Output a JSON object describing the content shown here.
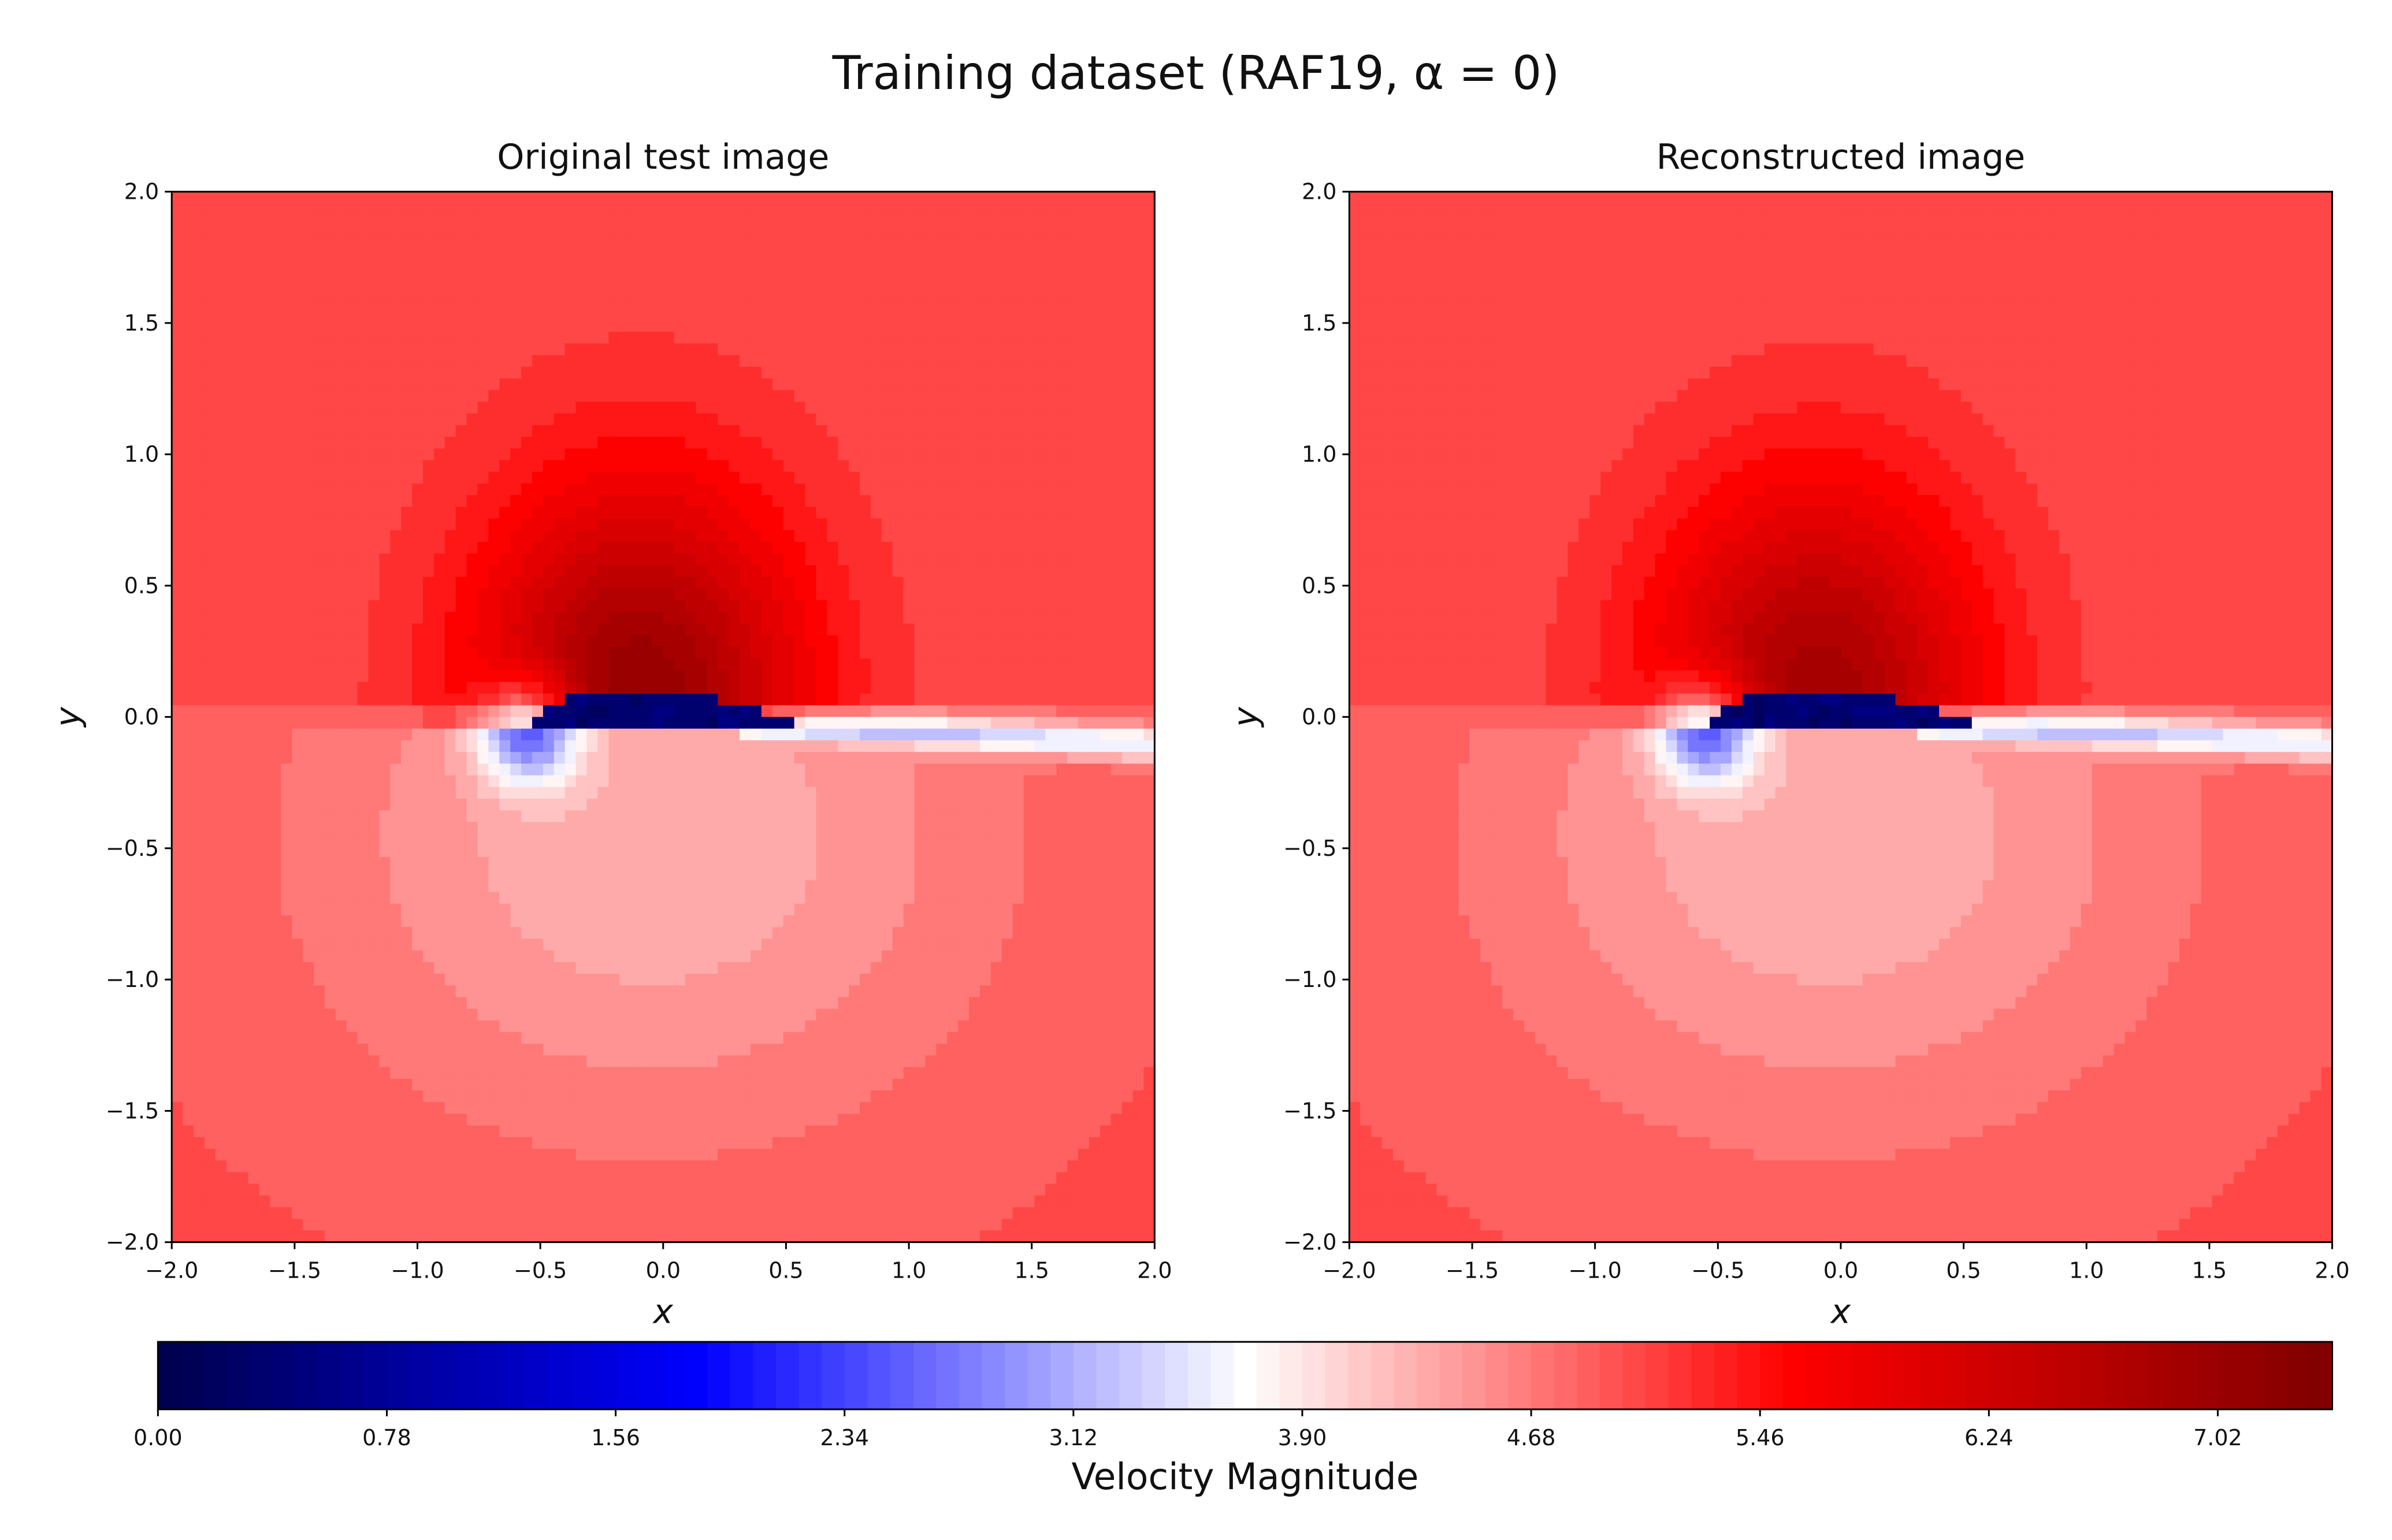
{
  "figure": {
    "title": "Training dataset (RAF19, α = 0)"
  },
  "colors": {
    "background": "#ffffff",
    "axis": "#000000",
    "colormap": [
      "#00004c",
      "#0000ff",
      "#ffffff",
      "#ff0000",
      "#7f0000"
    ]
  },
  "chart_data": [
    {
      "type": "heatmap",
      "title": "Original test image",
      "xlabel": "x",
      "ylabel": "y",
      "xlim": [
        -2.0,
        2.0
      ],
      "ylim": [
        -2.0,
        2.0
      ],
      "x_ticks": [
        "−2.0",
        "−1.5",
        "−1.0",
        "−0.5",
        "0.0",
        "0.5",
        "1.0",
        "1.5",
        "2.0"
      ],
      "y_ticks": [
        "2.0",
        "1.5",
        "1.0",
        "0.5",
        "0.0",
        "−0.5",
        "−1.0",
        "−1.5",
        "−2.0"
      ],
      "field": "velocity magnitude around an airfoil (leading edge ≈ x=-0.5, trailing edge ≈ x=0.5, wake toward x=2)",
      "freestream_value": 5.0,
      "max_value_above_airfoil": 7.0,
      "min_value_on_airfoil": 0.2
    },
    {
      "type": "heatmap",
      "title": "Reconstructed image",
      "xlabel": "x",
      "ylabel": "y",
      "xlim": [
        -2.0,
        2.0
      ],
      "ylim": [
        -2.0,
        2.0
      ],
      "x_ticks": [
        "−2.0",
        "−1.5",
        "−1.0",
        "−0.5",
        "0.0",
        "0.5",
        "1.0",
        "1.5",
        "2.0"
      ],
      "y_ticks": [
        "2.0",
        "1.5",
        "1.0",
        "0.5",
        "0.0",
        "−0.5",
        "−1.0",
        "−1.5",
        "−2.0"
      ],
      "field": "reconstructed velocity magnitude (slightly blockier contours)",
      "freestream_value": 5.0,
      "max_value_above_airfoil": 6.8,
      "min_value_on_airfoil": 0.2
    }
  ],
  "colorbar": {
    "label": "Velocity Magnitude",
    "range": [
      0.0,
      7.41
    ],
    "ticks": [
      "0.00",
      "0.78",
      "1.56",
      "2.34",
      "3.12",
      "3.90",
      "4.68",
      "5.46",
      "6.24",
      "7.02"
    ],
    "tick_values": [
      0.0,
      0.78,
      1.56,
      2.34,
      3.12,
      3.9,
      4.68,
      5.46,
      6.24,
      7.02
    ]
  }
}
